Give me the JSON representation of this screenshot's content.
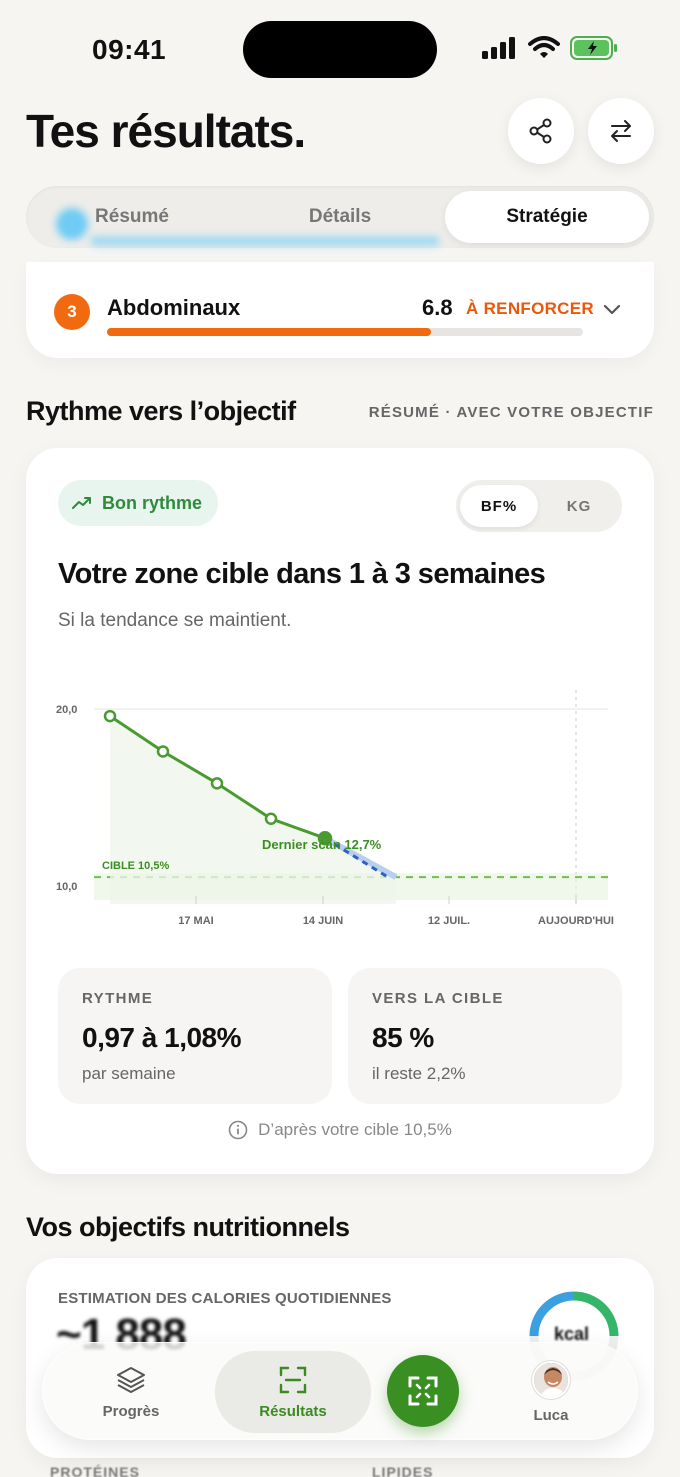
{
  "status_bar": {
    "time": "09:41"
  },
  "header": {
    "title": "Tes résultats."
  },
  "tabs": [
    {
      "label": "Résumé"
    },
    {
      "label": "Détails"
    },
    {
      "label": "Stratégie"
    }
  ],
  "muscle_row": {
    "rank": "3",
    "name": "Abdominaux",
    "score": "6.8",
    "status": "À RENFORCER",
    "progress": 0.68
  },
  "pace_section": {
    "title": "Rythme vers l’objectif",
    "meta": "RÉSUMÉ · AVEC VOTRE OBJECTIF",
    "badge": "Bon rythme",
    "units": [
      "BF%",
      "KG"
    ],
    "headline": "Votre zone cible dans 1 à 3 semaines",
    "subtitle": "Si la tendance se maintient.",
    "stats": [
      {
        "label": "RYTHME",
        "value": "0,97 à 1,08%",
        "sub": "par semaine"
      },
      {
        "label": "VERS LA CIBLE",
        "value": "85 %",
        "sub": "il reste 2,2%"
      }
    ],
    "note": "D’après votre cible 10,5%"
  },
  "chart_data": {
    "type": "line",
    "y_tick_labels": [
      "20,0",
      "10,0"
    ],
    "x_tick_labels": [
      "17 MAI",
      "14 JUIN",
      "12 JUIL.",
      "AUJOURD'HUI"
    ],
    "ylim": [
      10.0,
      20.0
    ],
    "series": [
      {
        "values": [
          19.6,
          17.6,
          15.8,
          13.8,
          12.7
        ]
      },
      {
        "values": [
          12.7,
          10.5
        ]
      }
    ],
    "annotations": [
      "Dernier scan 12,7%",
      "CIBLE 10,5%"
    ],
    "target": 10.5,
    "grid": false,
    "colors": {
      "line": "#4a9a32",
      "projection": "#2d62c4",
      "target": "#6cbf52"
    }
  },
  "nutrition": {
    "title": "Vos objectifs nutritionnels",
    "calories_label": "ESTIMATION DES CALORIES QUOTIDIENNES",
    "calories_value": "~1 888",
    "ring_label": "kcal",
    "bottom_labels": [
      "PROTÉINES",
      "LIPIDES"
    ]
  },
  "tabbar": {
    "items": [
      {
        "label": "Progrès",
        "icon": "layers-icon"
      },
      {
        "label": "Résultats",
        "icon": "scan-frame-icon"
      },
      {
        "label": "Luca",
        "icon": "avatar"
      }
    ],
    "fab_icon": "expand-scan-icon"
  },
  "colors": {
    "accent_green": "#3a8f22",
    "warning_orange": "#f26a10"
  }
}
